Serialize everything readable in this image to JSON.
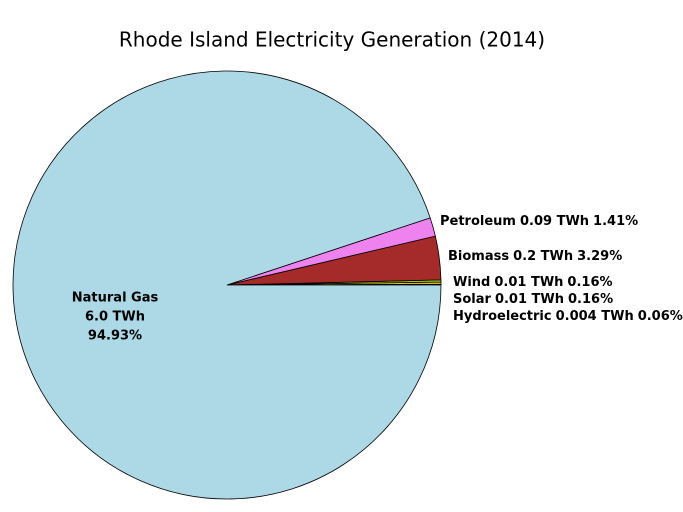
{
  "chart_data": {
    "type": "pie",
    "title": "Rhode Island Electricity Generation (2014)",
    "categories": [
      "Natural Gas",
      "Petroleum",
      "Biomass",
      "Wind",
      "Solar",
      "Hydroelectric"
    ],
    "twh_labels": [
      "6.0 TWh",
      "0.09 TWh",
      "0.2 TWh",
      "0.01 TWh",
      "0.01 TWh",
      "0.004 TWh"
    ],
    "values": [
      94.93,
      1.41,
      3.29,
      0.16,
      0.16,
      0.06
    ],
    "value_labels": [
      "94.93%",
      "1.41%",
      "3.29%",
      "0.16%",
      "0.16%",
      "0.06%"
    ],
    "colors": [
      "#add8e6",
      "#ee82ee",
      "#a52a2a",
      "#9acd32",
      "#ffd700",
      "#1f77b4"
    ]
  }
}
